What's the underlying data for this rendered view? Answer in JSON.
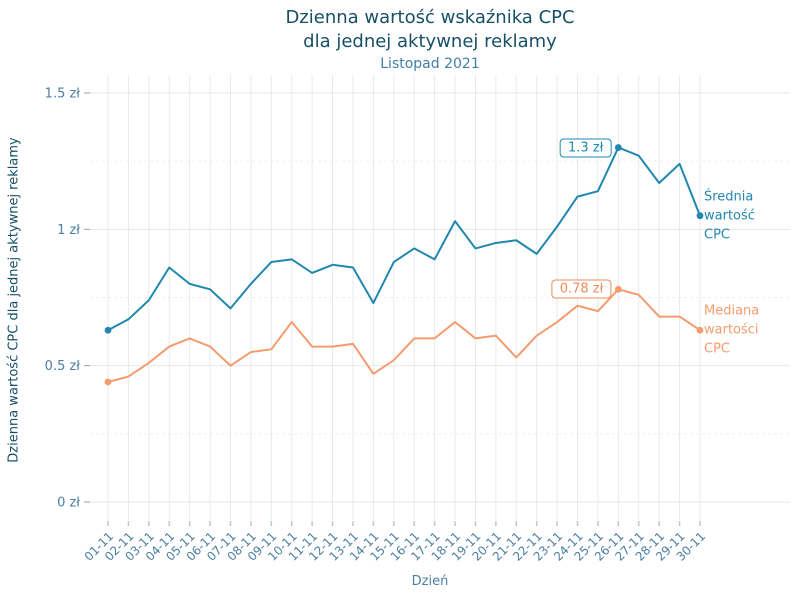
{
  "chart_data": {
    "type": "line",
    "title": "Dzienna wartość wskaźnika CPC dla jednej aktywnej reklamy",
    "title_lines": [
      "Dzienna wartość wskaźnika CPC",
      "dla jednej aktywnej reklamy"
    ],
    "subtitle": "Listopad 2021",
    "xlabel": "Dzień",
    "ylabel": "Dzienna wartość CPC dla jednej aktywnej reklamy",
    "x_tick_labels": [
      "01-11",
      "02-11",
      "03-11",
      "04-11",
      "05-11",
      "06-11",
      "07-11",
      "08-11",
      "09-11",
      "10-11",
      "11-11",
      "12-11",
      "13-11",
      "14-11",
      "15-11",
      "16-11",
      "17-11",
      "18-11",
      "19-11",
      "20-11",
      "21-11",
      "22-11",
      "23-11",
      "24-11",
      "25-11",
      "26-11",
      "27-11",
      "28-11",
      "29-11",
      "30-11"
    ],
    "y_ticks": [
      0,
      0.5,
      1,
      1.5
    ],
    "y_tick_labels": [
      "0 zł",
      "0.5 zł",
      "1 zł",
      "1.5 zł"
    ],
    "y_minor_ticks": [
      0.25,
      0.75,
      1.25
    ],
    "ylim": [
      0,
      1.57
    ],
    "grid": true,
    "legend_position": "right-of-line-ends",
    "series": [
      {
        "name": "Średnia wartość CPC",
        "label_lines": "Średnia\nwartość\nCPC",
        "color": "#2187ae",
        "values": [
          0.63,
          0.67,
          0.74,
          0.86,
          0.8,
          0.78,
          0.71,
          0.8,
          0.88,
          0.89,
          0.84,
          0.87,
          0.86,
          0.73,
          0.88,
          0.93,
          0.89,
          1.03,
          0.93,
          0.95,
          0.96,
          0.91,
          1.01,
          1.12,
          1.14,
          1.3,
          1.27,
          1.17,
          1.24,
          1.05
        ]
      },
      {
        "name": "Mediana wartości CPC",
        "label_lines": "Mediana\nwartości\nCPC",
        "color": "#f49c6e",
        "values": [
          0.44,
          0.46,
          0.51,
          0.57,
          0.6,
          0.57,
          0.5,
          0.55,
          0.56,
          0.66,
          0.57,
          0.57,
          0.58,
          0.47,
          0.52,
          0.6,
          0.6,
          0.66,
          0.6,
          0.61,
          0.53,
          0.61,
          0.66,
          0.72,
          0.7,
          0.78,
          0.76,
          0.68,
          0.68,
          0.63
        ]
      }
    ],
    "annotations": [
      {
        "series": "Średnia wartość CPC",
        "x": "26-11",
        "value": 1.3,
        "text": "1.3 zł",
        "color": "#1d8ab4"
      },
      {
        "series": "Mediana wartości CPC",
        "x": "26-11",
        "value": 0.78,
        "text": "0.78 zł",
        "color": "#ee8c5a"
      }
    ]
  },
  "style_colors": {
    "title": "#175066",
    "subtitle": "#4180a6",
    "tick_labels": "#4c7fa2",
    "major_grid": "#e4e8ea",
    "vertical_grid": "#e7eaec",
    "minor_grid": "#edf0f2",
    "y_tick_mark": "#8fa5b2",
    "x_tick_mark": "#b3cbd8",
    "background": "#ffffff"
  }
}
